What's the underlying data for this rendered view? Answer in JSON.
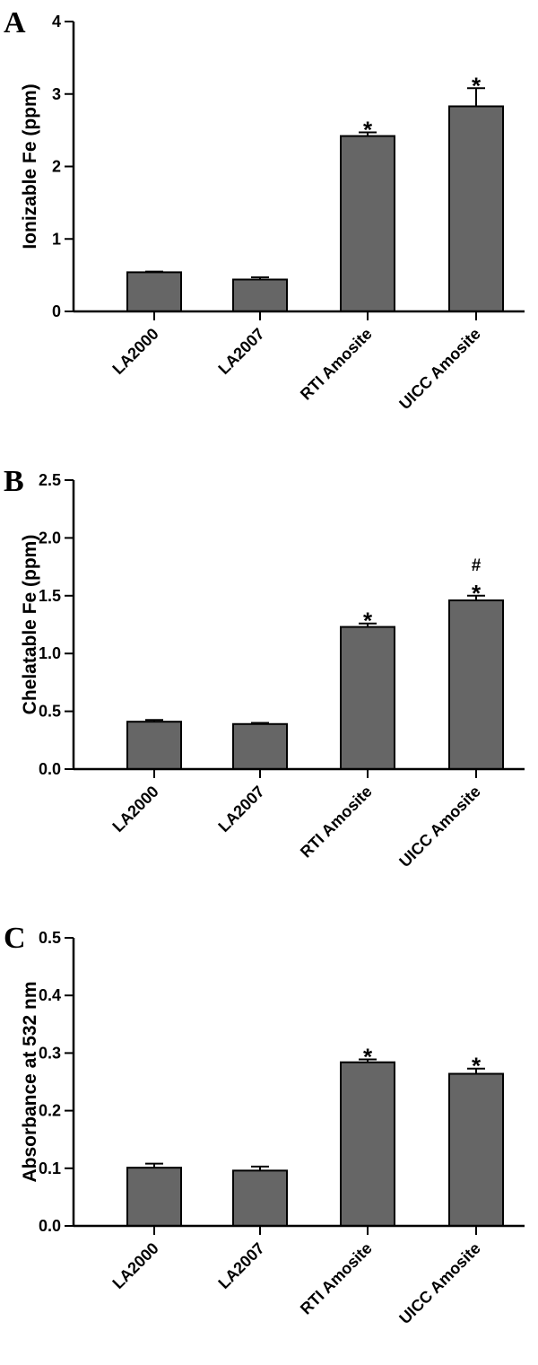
{
  "chart_data": [
    {
      "type": "bar",
      "panel": "A",
      "ylabel": "Ionizable Fe (ppm)",
      "categories": [
        "LA2000",
        "LA2007",
        "RTI Amosite",
        "UICC Amosite"
      ],
      "values": [
        0.54,
        0.44,
        2.42,
        2.83
      ],
      "errors": [
        0.01,
        0.03,
        0.05,
        0.25
      ],
      "annotations": [
        "",
        "",
        "*",
        "*"
      ],
      "ylim": [
        0,
        4
      ],
      "yticks": [
        "0",
        "1",
        "2",
        "3",
        "4"
      ],
      "bar_color": "#666666"
    },
    {
      "type": "bar",
      "panel": "B",
      "ylabel": "Chelatable Fe (ppm)",
      "categories": [
        "LA2000",
        "LA2007",
        "RTI Amosite",
        "UICC Amosite"
      ],
      "values": [
        0.41,
        0.39,
        1.23,
        1.46
      ],
      "errors": [
        0.015,
        0.01,
        0.03,
        0.04
      ],
      "annotations": [
        "",
        "",
        "*",
        "#*"
      ],
      "ylim": [
        0,
        2.5
      ],
      "yticks": [
        "0.0",
        "0.5",
        "1.0",
        "1.5",
        "2.0",
        "2.5"
      ],
      "bar_color": "#666666"
    },
    {
      "type": "bar",
      "panel": "C",
      "ylabel": "Absorbance at 532 nm",
      "categories": [
        "LA2000",
        "LA2007",
        "RTI Amosite",
        "UICC Amosite"
      ],
      "values": [
        0.101,
        0.096,
        0.284,
        0.264
      ],
      "errors": [
        0.007,
        0.007,
        0.005,
        0.009
      ],
      "annotations": [
        "",
        "",
        "*",
        "*"
      ],
      "ylim": [
        0,
        0.5
      ],
      "yticks": [
        "0.0",
        "0.1",
        "0.2",
        "0.3",
        "0.4",
        "0.5"
      ],
      "bar_color": "#666666"
    }
  ]
}
